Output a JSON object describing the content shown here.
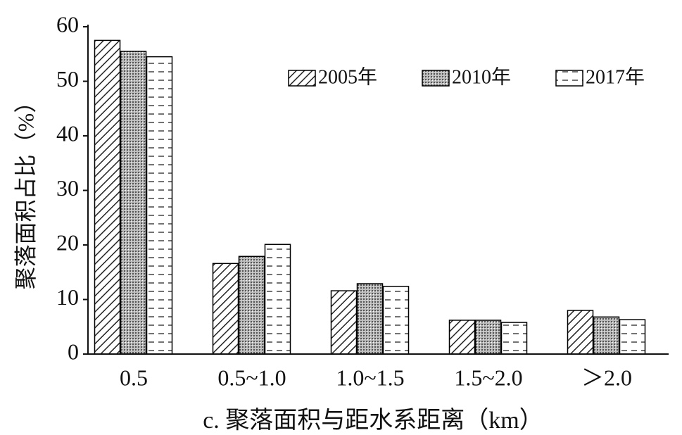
{
  "chart_data": {
    "type": "bar",
    "y_label": "聚落面积占比（%）",
    "x_label": "c. 聚落面积与距水系距离（km）",
    "categories": [
      "0.5",
      "0.5~1.0",
      "1.0~1.5",
      "1.5~2.0",
      "＞2.0"
    ],
    "series": [
      {
        "name": "2005年",
        "color": "#000000",
        "values": [
          57.5,
          16.6,
          11.6,
          6.2,
          8.0
        ]
      },
      {
        "name": "2010年",
        "color": "#000000",
        "values": [
          55.5,
          17.9,
          12.9,
          6.2,
          6.8
        ]
      },
      {
        "name": "2017年",
        "color": "#000000",
        "values": [
          54.5,
          20.1,
          12.4,
          5.8,
          6.3
        ]
      }
    ],
    "ylim": [
      0,
      60
    ],
    "yticks": [
      0,
      10,
      20,
      30,
      40,
      50,
      60
    ],
    "grid": false,
    "legend": "top-right"
  }
}
